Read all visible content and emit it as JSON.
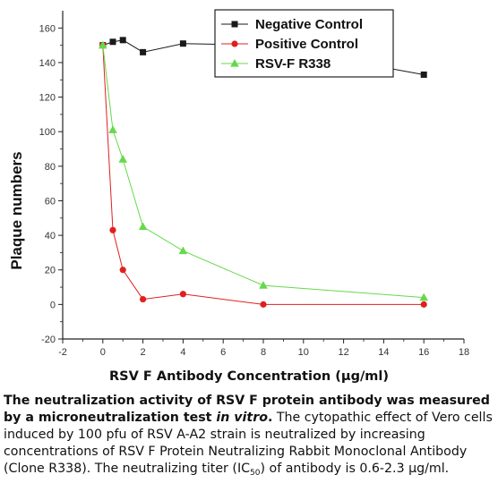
{
  "chart_data": {
    "type": "line",
    "xlabel": "RSV F Antibody Concentration (µg/ml)",
    "ylabel": "Plaque numbers",
    "xlim": [
      -2,
      18
    ],
    "ylim": [
      -20,
      170
    ],
    "xticks": [
      -2,
      0,
      2,
      4,
      6,
      8,
      10,
      12,
      14,
      16,
      18
    ],
    "yticks": [
      -20,
      0,
      20,
      40,
      60,
      80,
      100,
      120,
      140,
      160
    ],
    "grid": false,
    "legend_position": "top-right",
    "series": [
      {
        "name": "Negative Control",
        "color": "#1a1a1a",
        "marker": "square",
        "x": [
          0,
          0.5,
          1,
          2,
          4,
          8,
          16
        ],
        "y": [
          150,
          152,
          153,
          146,
          151,
          150,
          133
        ]
      },
      {
        "name": "Positive Control",
        "color": "#e02020",
        "marker": "circle",
        "x": [
          0,
          0.5,
          1,
          2,
          4,
          8,
          16
        ],
        "y": [
          150,
          43,
          20,
          3,
          6,
          0,
          0
        ]
      },
      {
        "name": "RSV-F R338",
        "color": "#66d94a",
        "marker": "triangle",
        "x": [
          0,
          0.5,
          1,
          2,
          4,
          8,
          16
        ],
        "y": [
          150,
          101,
          84,
          45,
          31,
          11,
          4
        ]
      }
    ]
  },
  "caption": {
    "bold_lead": "The neutralization activity of RSV F protein antibody was measured by a microneutralization test ",
    "bold_italic": "in vitro",
    "bold_end": ".",
    "body": " The cytopathic effect of Vero cells induced by 100 pfu of RSV A-A2 strain is neutralized by increasing concentrations of RSV F Protein Neutralizing Rabbit Monoclonal Antibody (Clone R338). The neutralizing titer (IC",
    "sub": "50",
    "tail": ") of antibody is 0.6-2.3 µg/ml."
  }
}
